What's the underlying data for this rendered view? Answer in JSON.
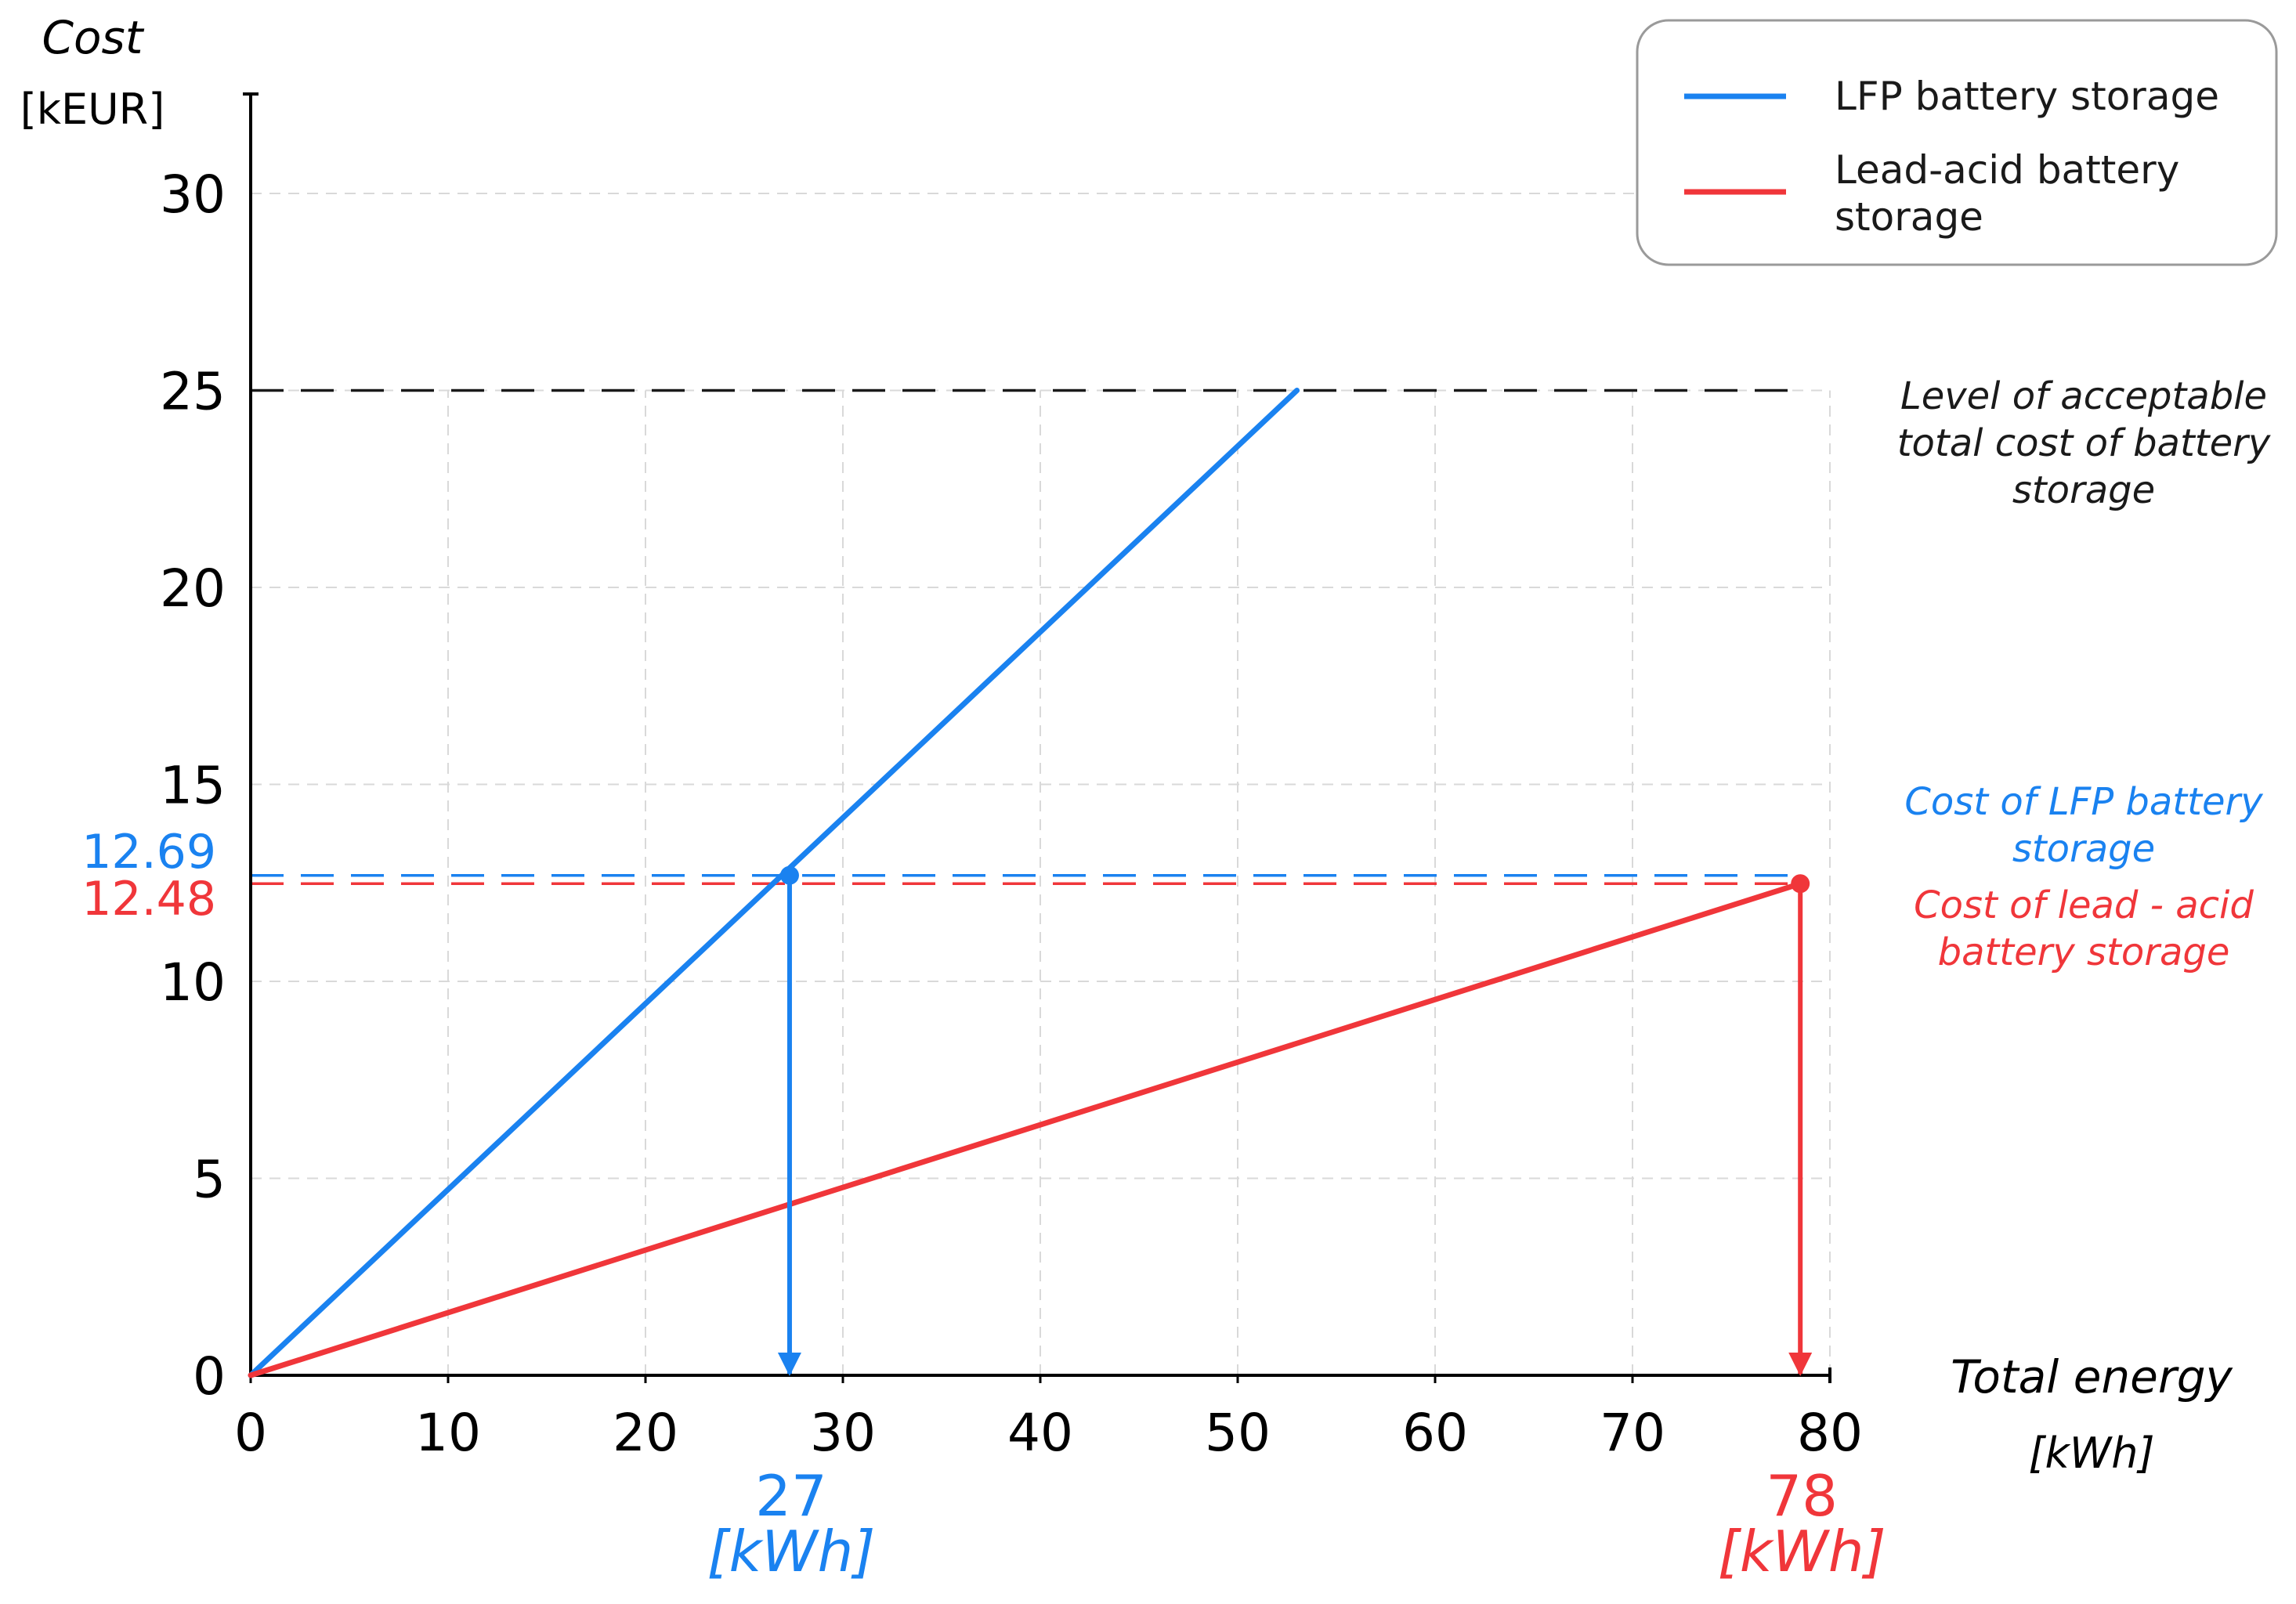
{
  "chart_data": {
    "type": "line",
    "ylabel": "Cost",
    "ylabel_unit": "[kEUR]",
    "xlabel": "Total energy",
    "xlabel_unit": "[kWh]",
    "xlim": [
      0,
      80
    ],
    "ylim": [
      0,
      32
    ],
    "x_ticks": [
      0,
      10,
      20,
      30,
      40,
      50,
      60,
      70,
      80
    ],
    "y_ticks": [
      0,
      5,
      10,
      15,
      20,
      25,
      30
    ],
    "grid": true,
    "legend_position": "top-right",
    "series": [
      {
        "name": "LFP battery storage",
        "color": "#1a82f0",
        "x": [
          0,
          53
        ],
        "y": [
          0,
          25
        ]
      },
      {
        "name": "Lead-acid battery storage",
        "color": "#f0363a",
        "x": [
          0,
          78.5
        ],
        "y": [
          0,
          12.48
        ]
      }
    ],
    "reference_lines": [
      {
        "y": 25,
        "color": "#1a1a1a",
        "label": [
          "Level of acceptable",
          "total cost of battery",
          "storage"
        ]
      },
      {
        "y": 12.69,
        "color": "#1a82f0",
        "value_label": "12.69",
        "label": [
          "Cost of LFP battery",
          "storage"
        ]
      },
      {
        "y": 12.48,
        "color": "#f0363a",
        "value_label": "12.48",
        "label": [
          "Cost of lead - acid",
          "battery storage"
        ]
      }
    ],
    "markers": [
      {
        "x": 27.3,
        "y": 12.69,
        "color": "#1a82f0",
        "value_label": "27",
        "unit_label": "[kWh]"
      },
      {
        "x": 78.5,
        "y": 12.48,
        "color": "#f0363a",
        "value_label": "78",
        "unit_label": "[kWh]"
      }
    ]
  }
}
